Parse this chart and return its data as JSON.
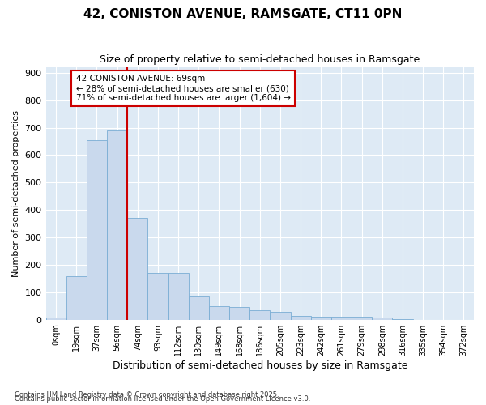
{
  "title": "42, CONISTON AVENUE, RAMSGATE, CT11 0PN",
  "subtitle": "Size of property relative to semi-detached houses in Ramsgate",
  "xlabel": "Distribution of semi-detached houses by size in Ramsgate",
  "ylabel": "Number of semi-detached properties",
  "footnote1": "Contains HM Land Registry data © Crown copyright and database right 2025.",
  "footnote2": "Contains public sector information licensed under the Open Government Licence v3.0.",
  "bar_labels": [
    "0sqm",
    "19sqm",
    "37sqm",
    "56sqm",
    "74sqm",
    "93sqm",
    "112sqm",
    "130sqm",
    "149sqm",
    "168sqm",
    "186sqm",
    "205sqm",
    "223sqm",
    "242sqm",
    "261sqm",
    "279sqm",
    "298sqm",
    "316sqm",
    "335sqm",
    "354sqm",
    "372sqm"
  ],
  "bar_values": [
    8,
    160,
    655,
    690,
    370,
    170,
    170,
    85,
    50,
    45,
    35,
    30,
    15,
    12,
    10,
    10,
    8,
    3,
    0,
    0,
    0
  ],
  "bar_color": "#c9d9ed",
  "bar_edgecolor": "#7aadd4",
  "vline_color": "#cc0000",
  "annotation_text": "42 CONISTON AVENUE: 69sqm\n← 28% of semi-detached houses are smaller (630)\n71% of semi-detached houses are larger (1,604) →",
  "annotation_box_facecolor": "#ffffff",
  "annotation_box_edgecolor": "#cc0000",
  "ylim": [
    0,
    920
  ],
  "yticks": [
    0,
    100,
    200,
    300,
    400,
    500,
    600,
    700,
    800,
    900
  ],
  "plot_bg_color": "#deeaf5",
  "title_fontsize": 11,
  "subtitle_fontsize": 9,
  "ylabel_fontsize": 8,
  "xlabel_fontsize": 9
}
